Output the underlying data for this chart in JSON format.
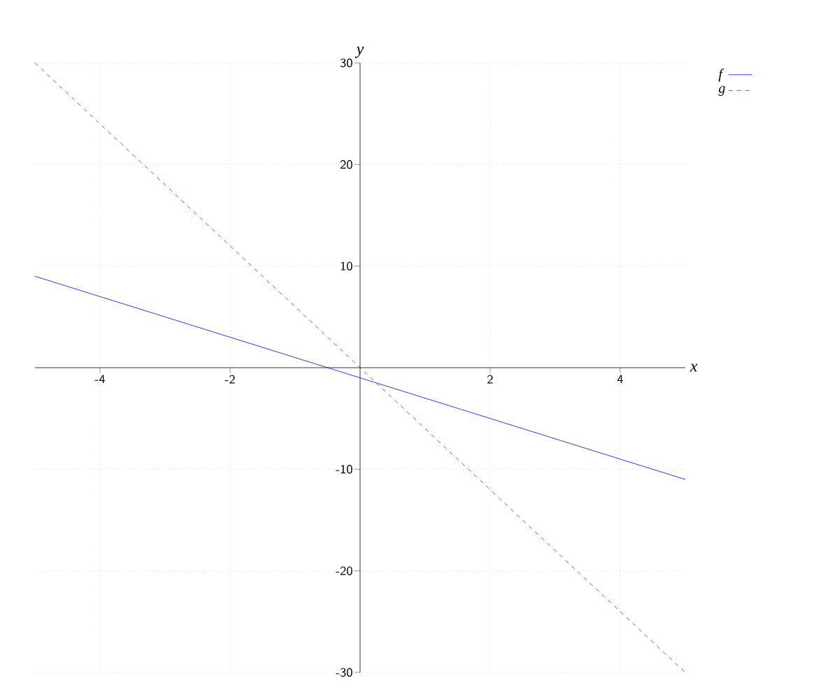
{
  "chart_data": {
    "type": "line",
    "xlabel": "x",
    "ylabel": "y",
    "x": [
      -5,
      5
    ],
    "series": [
      {
        "name": "f",
        "color": "#0000ff",
        "line_style": "solid",
        "values": [
          9,
          -11
        ]
      },
      {
        "name": "g",
        "color": "#008000",
        "line_style": "dashed",
        "values": [
          30,
          -30
        ]
      }
    ],
    "xlim": [
      -5,
      5
    ],
    "ylim": [
      -30,
      30
    ],
    "xticks": [
      -4,
      -2,
      2,
      4
    ],
    "yticks": [
      -30,
      -20,
      -10,
      10,
      20,
      30
    ],
    "grid": true,
    "legend": "top right",
    "marker": "none"
  }
}
